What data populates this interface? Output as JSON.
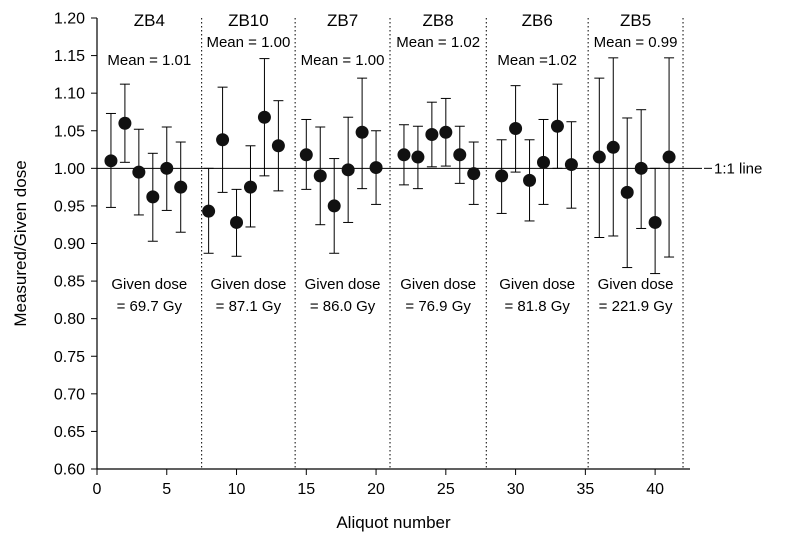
{
  "chart_data": {
    "type": "scatter",
    "title": "",
    "xlabel": "Aliquot number",
    "ylabel": "Measured/Given dose",
    "xlim": [
      0,
      42.5
    ],
    "ylim": [
      0.6,
      1.2
    ],
    "x_ticks": [
      0,
      5,
      10,
      15,
      20,
      25,
      30,
      35,
      40
    ],
    "y_ticks": [
      0.6,
      0.65,
      0.7,
      0.75,
      0.8,
      0.85,
      0.9,
      0.95,
      1.0,
      1.05,
      1.1,
      1.15,
      1.2
    ],
    "grid": false,
    "reference_line": {
      "y": 1.0,
      "label": "1:1 line"
    },
    "separators": [
      7.5,
      14.2,
      21,
      27.9,
      35.2,
      42
    ],
    "groups": [
      {
        "name": "ZB4",
        "mean_label": "Mean = 1.01",
        "dose_label_line1": "Given dose",
        "dose_label_line2": "= 69.7 Gy"
      },
      {
        "name": "ZB10",
        "mean_label": "Mean = 1.00",
        "dose_label_line1": "Given dose",
        "dose_label_line2": "= 87.1 Gy"
      },
      {
        "name": "ZB7",
        "mean_label": "Mean = 1.00",
        "dose_label_line1": "Given dose",
        "dose_label_line2": "= 86.0 Gy"
      },
      {
        "name": "ZB8",
        "mean_label": "Mean = 1.02",
        "dose_label_line1": "Given dose",
        "dose_label_line2": "= 76.9 Gy"
      },
      {
        "name": "ZB6",
        "mean_label": "Mean =1.02",
        "dose_label_line1": "Given dose",
        "dose_label_line2": "= 81.8 Gy"
      },
      {
        "name": "ZB5",
        "mean_label": "Mean = 0.99",
        "dose_label_line1": "Given dose",
        "dose_label_line2": "= 221.9 Gy"
      }
    ],
    "points": [
      {
        "x": 1,
        "y": 1.01,
        "low": 0.948,
        "high": 1.073
      },
      {
        "x": 2,
        "y": 1.06,
        "low": 1.008,
        "high": 1.112
      },
      {
        "x": 3,
        "y": 0.995,
        "low": 0.938,
        "high": 1.052
      },
      {
        "x": 4,
        "y": 0.962,
        "low": 0.903,
        "high": 1.02
      },
      {
        "x": 5,
        "y": 1.0,
        "low": 0.944,
        "high": 1.055
      },
      {
        "x": 6,
        "y": 0.975,
        "low": 0.915,
        "high": 1.035
      },
      {
        "x": 8,
        "y": 0.943,
        "low": 0.887,
        "high": 1.0
      },
      {
        "x": 9,
        "y": 1.038,
        "low": 0.968,
        "high": 1.108
      },
      {
        "x": 10,
        "y": 0.928,
        "low": 0.883,
        "high": 0.972
      },
      {
        "x": 11,
        "y": 0.975,
        "low": 0.922,
        "high": 1.03
      },
      {
        "x": 12,
        "y": 1.068,
        "low": 0.99,
        "high": 1.146
      },
      {
        "x": 13,
        "y": 1.03,
        "low": 0.97,
        "high": 1.09
      },
      {
        "x": 15,
        "y": 1.018,
        "low": 0.972,
        "high": 1.065
      },
      {
        "x": 16,
        "y": 0.99,
        "low": 0.925,
        "high": 1.055
      },
      {
        "x": 17,
        "y": 0.95,
        "low": 0.887,
        "high": 1.013
      },
      {
        "x": 18,
        "y": 0.998,
        "low": 0.928,
        "high": 1.068
      },
      {
        "x": 19,
        "y": 1.048,
        "low": 0.973,
        "high": 1.12
      },
      {
        "x": 20,
        "y": 1.001,
        "low": 0.952,
        "high": 1.05
      },
      {
        "x": 22,
        "y": 1.018,
        "low": 0.978,
        "high": 1.058
      },
      {
        "x": 23,
        "y": 1.015,
        "low": 0.973,
        "high": 1.056
      },
      {
        "x": 24,
        "y": 1.045,
        "low": 1.002,
        "high": 1.088
      },
      {
        "x": 25,
        "y": 1.048,
        "low": 1.003,
        "high": 1.093
      },
      {
        "x": 26,
        "y": 1.018,
        "low": 0.98,
        "high": 1.056
      },
      {
        "x": 27,
        "y": 0.993,
        "low": 0.952,
        "high": 1.035
      },
      {
        "x": 29,
        "y": 0.99,
        "low": 0.94,
        "high": 1.038
      },
      {
        "x": 30,
        "y": 1.053,
        "low": 0.995,
        "high": 1.11
      },
      {
        "x": 31,
        "y": 0.984,
        "low": 0.93,
        "high": 1.038
      },
      {
        "x": 32,
        "y": 1.008,
        "low": 0.952,
        "high": 1.065
      },
      {
        "x": 33,
        "y": 1.056,
        "low": 1.0,
        "high": 1.112
      },
      {
        "x": 34,
        "y": 1.005,
        "low": 0.947,
        "high": 1.062
      },
      {
        "x": 36,
        "y": 1.015,
        "low": 0.908,
        "high": 1.12
      },
      {
        "x": 37,
        "y": 1.028,
        "low": 0.91,
        "high": 1.147
      },
      {
        "x": 38,
        "y": 0.968,
        "low": 0.868,
        "high": 1.067
      },
      {
        "x": 39,
        "y": 1.0,
        "low": 0.92,
        "high": 1.078
      },
      {
        "x": 40,
        "y": 0.928,
        "low": 0.86,
        "high": 1.0
      },
      {
        "x": 41,
        "y": 1.015,
        "low": 0.882,
        "high": 1.147
      }
    ]
  }
}
